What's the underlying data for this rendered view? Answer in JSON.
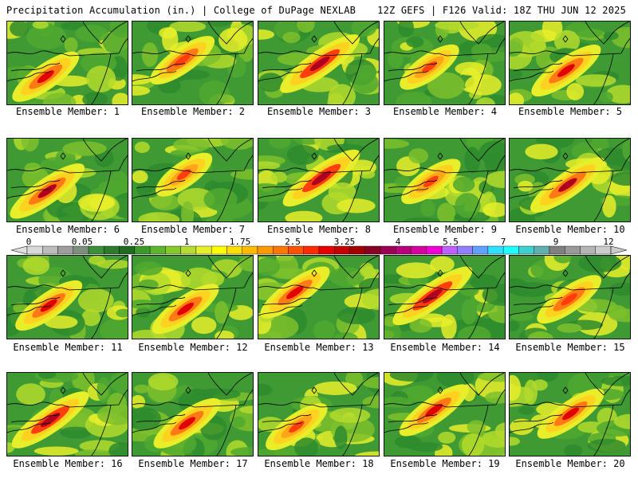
{
  "header": {
    "title": "Precipitation Accumulation (in.) | College of DuPage NEXLAB",
    "run_info": "12Z GEFS | F126 Valid: 18Z THU JUN 12 2025"
  },
  "colorbar": {
    "labels": [
      "0",
      "0.05",
      "0.25",
      "1",
      "1.75",
      "2.5",
      "3.25",
      "4",
      "5.5",
      "7",
      "9",
      "12"
    ],
    "colors": [
      "#d9d9d9",
      "#bcbcbc",
      "#9e9e9e",
      "#7f8f7f",
      "#3b8f3b",
      "#2d7a2d",
      "#1f6b1f",
      "#3c9a2a",
      "#5cb52e",
      "#85c92c",
      "#b7dc30",
      "#e6ef2c",
      "#ffff00",
      "#ffdd00",
      "#ffbb00",
      "#ff9900",
      "#ff7700",
      "#ff5200",
      "#ff2a00",
      "#e60000",
      "#c40000",
      "#a30000",
      "#8a0025",
      "#9e0055",
      "#b8007a",
      "#d6009e",
      "#f000d6",
      "#c060ff",
      "#9080ff",
      "#60a0ff",
      "#30e0ff",
      "#20ffff",
      "#40d0d0",
      "#60b0b0",
      "#808080",
      "#999999",
      "#b4b4b4",
      "#cccccc"
    ]
  },
  "members": [
    {
      "label": "Ensemble Member: 1",
      "intensity": 0.45
    },
    {
      "label": "Ensemble Member: 2",
      "intensity": 0.4
    },
    {
      "label": "Ensemble Member: 3",
      "intensity": 0.7
    },
    {
      "label": "Ensemble Member: 4",
      "intensity": 0.3
    },
    {
      "label": "Ensemble Member: 5",
      "intensity": 0.5
    },
    {
      "label": "Ensemble Member: 6",
      "intensity": 0.6
    },
    {
      "label": "Ensemble Member: 7",
      "intensity": 0.25
    },
    {
      "label": "Ensemble Member: 8",
      "intensity": 0.65
    },
    {
      "label": "Ensemble Member: 9",
      "intensity": 0.3
    },
    {
      "label": "Ensemble Member: 10",
      "intensity": 0.6
    },
    {
      "label": "Ensemble Member: 11",
      "intensity": 0.45
    },
    {
      "label": "Ensemble Member: 12",
      "intensity": 0.45
    },
    {
      "label": "Ensemble Member: 13",
      "intensity": 0.5
    },
    {
      "label": "Ensemble Member: 14",
      "intensity": 0.7
    },
    {
      "label": "Ensemble Member: 15",
      "intensity": 0.4
    },
    {
      "label": "Ensemble Member: 16",
      "intensity": 0.65
    },
    {
      "label": "Ensemble Member: 17",
      "intensity": 0.45
    },
    {
      "label": "Ensemble Member: 18",
      "intensity": 0.35
    },
    {
      "label": "Ensemble Member: 19",
      "intensity": 0.5
    },
    {
      "label": "Ensemble Member: 20",
      "intensity": 0.45
    }
  ]
}
